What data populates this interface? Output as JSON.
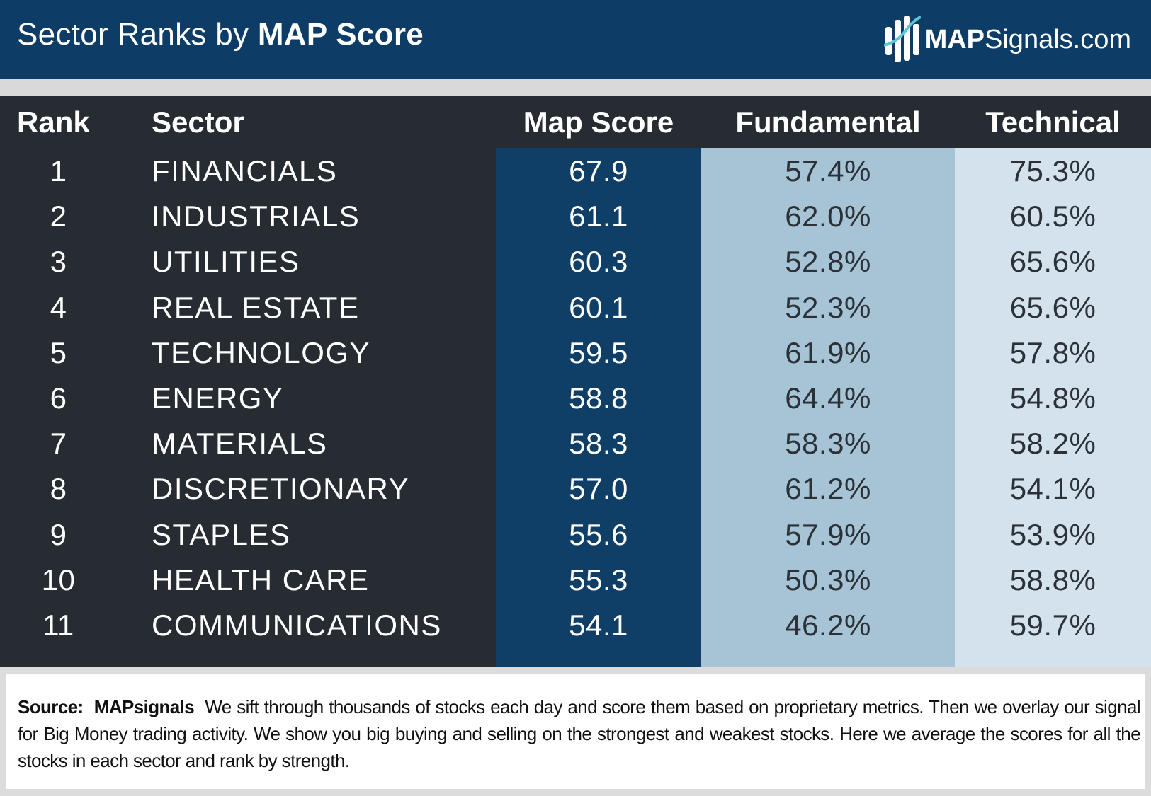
{
  "header": {
    "title_prefix": "Sector Ranks by",
    "title_bold": "MAP Score",
    "brand_bold": "MAP",
    "brand_rest": "Signals.com",
    "brand_color": "#0d3d66"
  },
  "chart_data": {
    "type": "table",
    "columns": [
      "Rank",
      "Sector",
      "Map Score",
      "Fundamental",
      "Technical"
    ],
    "rows": [
      [
        "1",
        "FINANCIALS",
        "67.9",
        "57.4%",
        "75.3%"
      ],
      [
        "2",
        "INDUSTRIALS",
        "61.1",
        "62.0%",
        "60.5%"
      ],
      [
        "3",
        "UTILITIES",
        "60.3",
        "52.8%",
        "65.6%"
      ],
      [
        "4",
        "REAL ESTATE",
        "60.1",
        "52.3%",
        "65.6%"
      ],
      [
        "5",
        "TECHNOLOGY",
        "59.5",
        "61.9%",
        "57.8%"
      ],
      [
        "6",
        "ENERGY",
        "58.8",
        "64.4%",
        "54.8%"
      ],
      [
        "7",
        "MATERIALS",
        "58.3",
        "58.3%",
        "58.2%"
      ],
      [
        "8",
        "DISCRETIONARY",
        "57.0",
        "61.2%",
        "54.1%"
      ],
      [
        "9",
        "STAPLES",
        "55.6",
        "57.9%",
        "53.9%"
      ],
      [
        "10",
        "HEALTH CARE",
        "55.3",
        "50.3%",
        "58.8%"
      ],
      [
        "11",
        "COMMUNICATIONS",
        "54.1",
        "46.2%",
        "59.7%"
      ]
    ],
    "colors": {
      "table_bg": "#262c31",
      "map_score_col": "#0f3e67",
      "fundamental_col": "#a6c4d5",
      "technical_col": "#d4e2ee"
    }
  },
  "footer": {
    "source_label": "Source:",
    "source_name": "MAPsignals",
    "text": "We sift through thousands of stocks each day and score them based on proprietary metrics. Then we overlay our signal for Big Money trading activity. We show you big buying and selling on the strongest and weakest stocks. Here we average the scores for all the stocks in each sector and rank by strength."
  }
}
